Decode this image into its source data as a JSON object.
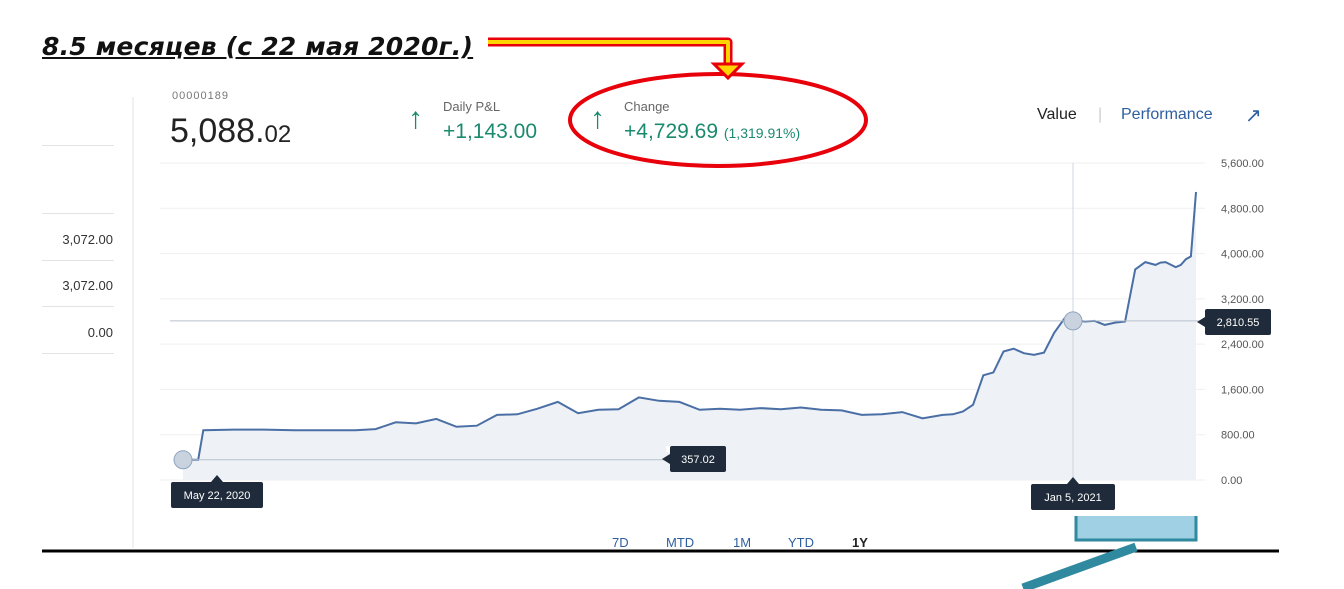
{
  "heading": "8.5 месяцев (с 22 мая 2020г.)",
  "account": {
    "partial_text": "00000189",
    "balance_main": "5,088.",
    "balance_cents": "02"
  },
  "daily_pnl": {
    "label": "Daily P&L",
    "value": "+1,143.00"
  },
  "change": {
    "label": "Change",
    "value": "+4,729.69",
    "percent": "(1,319.91%)"
  },
  "toggle": {
    "value_label": "Value",
    "separator": "|",
    "performance_label": "Performance",
    "expand_icon": "arrow-up-right-icon"
  },
  "sidebar_values": [
    "3,072.00",
    "3,072.00",
    "0.00"
  ],
  "range_tabs": [
    "7D",
    "MTD",
    "1M",
    "YTD",
    "1Y"
  ],
  "active_range": "1Y",
  "colors": {
    "positive": "#1a8a6e",
    "line": "#4a6fa5",
    "link": "#2d5fa0",
    "annotation_red": "#e8000b",
    "annotation_yellow": "#ffd400",
    "tooltip_bg": "#1f2b3a",
    "bracket": "#7ab8d6",
    "pointer": "#2f8aa0"
  },
  "chart_data": {
    "type": "area",
    "x_start": "May 22, 2020",
    "x_end": "Jan 5, 2021",
    "ylim": [
      0,
      5600
    ],
    "yticks": [
      0,
      800,
      1600,
      2400,
      3200,
      4000,
      4800,
      5600
    ],
    "ytick_labels": [
      "0.00",
      "800.00",
      "1,600.00",
      "2,400.00",
      "3,200.00",
      "4,000.00",
      "4,800.00",
      "5,600.00"
    ],
    "series": [
      {
        "t": [
          0,
          0.015,
          0.02,
          0.05,
          0.08,
          0.11,
          0.14,
          0.17,
          0.19,
          0.21,
          0.23,
          0.25,
          0.27,
          0.29,
          0.31,
          0.33,
          0.35,
          0.37,
          0.39,
          0.41,
          0.43,
          0.45,
          0.47,
          0.49,
          0.51,
          0.53,
          0.55,
          0.57,
          0.59,
          0.61,
          0.63,
          0.65,
          0.67,
          0.69,
          0.71,
          0.73,
          0.75,
          0.76,
          0.77,
          0.78,
          0.79,
          0.8,
          0.81,
          0.82,
          0.83,
          0.84,
          0.85,
          0.86,
          0.87,
          0.88,
          0.89,
          0.9,
          0.91,
          0.92,
          0.93,
          0.94,
          0.95,
          0.96,
          0.965,
          0.97,
          0.98,
          0.985,
          0.99,
          0.995,
          1.0
        ],
        "values": [
          357,
          357,
          880,
          890,
          890,
          880,
          880,
          880,
          900,
          1020,
          1000,
          1080,
          940,
          960,
          1150,
          1160,
          1260,
          1380,
          1180,
          1240,
          1250,
          1460,
          1400,
          1380,
          1240,
          1260,
          1240,
          1270,
          1250,
          1280,
          1240,
          1230,
          1150,
          1160,
          1200,
          1090,
          1150,
          1160,
          1210,
          1330,
          1850,
          1900,
          2270,
          2320,
          2240,
          2210,
          2250,
          2600,
          2850,
          2830,
          2800,
          2810,
          2740,
          2780,
          2800,
          3720,
          3850,
          3800,
          3840,
          3850,
          3760,
          3800,
          3900,
          3950,
          5088
        ]
      }
    ],
    "hover_marker": {
      "date": "Jan 5, 2021",
      "value": "2,810.55"
    },
    "start_marker": {
      "date": "May 22, 2020",
      "value": "357.02"
    }
  }
}
